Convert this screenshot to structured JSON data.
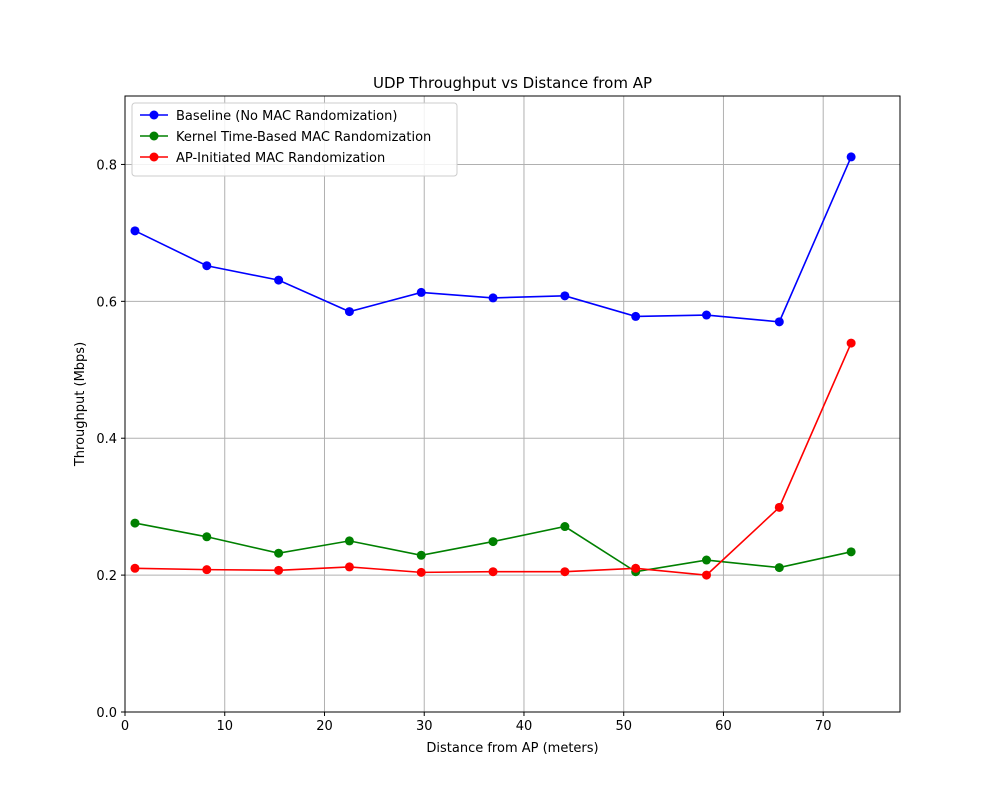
{
  "chart_data": {
    "type": "line",
    "title": "UDP Throughput vs Distance from AP",
    "xlabel": "Distance from AP (meters)",
    "ylabel": "Throughput (Mbps)",
    "xlim": [
      0,
      77.7
    ],
    "ylim": [
      0,
      0.9
    ],
    "xticks": [
      0,
      10,
      20,
      30,
      40,
      50,
      60,
      70
    ],
    "yticks": [
      0.0,
      0.2,
      0.4,
      0.6,
      0.8
    ],
    "xtick_labels": [
      "0",
      "10",
      "20",
      "30",
      "40",
      "50",
      "60",
      "70"
    ],
    "ytick_labels": [
      "0.0",
      "0.2",
      "0.4",
      "0.6",
      "0.8"
    ],
    "grid": true,
    "legend_position": "upper-left",
    "x": [
      1.0,
      8.2,
      15.4,
      22.5,
      29.7,
      36.9,
      44.1,
      51.2,
      58.3,
      65.6,
      72.8
    ],
    "series": [
      {
        "name": "Baseline (No MAC Randomization)",
        "color": "#0000ff",
        "values": [
          0.703,
          0.652,
          0.631,
          0.585,
          0.613,
          0.605,
          0.608,
          0.578,
          0.58,
          0.57,
          0.811
        ]
      },
      {
        "name": "Kernel Time-Based MAC Randomization",
        "color": "#008000",
        "values": [
          0.276,
          0.256,
          0.232,
          0.25,
          0.229,
          0.249,
          0.271,
          0.205,
          0.222,
          0.211,
          0.234
        ]
      },
      {
        "name": "AP-Initiated MAC Randomization",
        "color": "#ff0000",
        "values": [
          0.21,
          0.208,
          0.207,
          0.212,
          0.204,
          0.205,
          0.205,
          0.21,
          0.2,
          0.299,
          0.539
        ]
      }
    ]
  }
}
